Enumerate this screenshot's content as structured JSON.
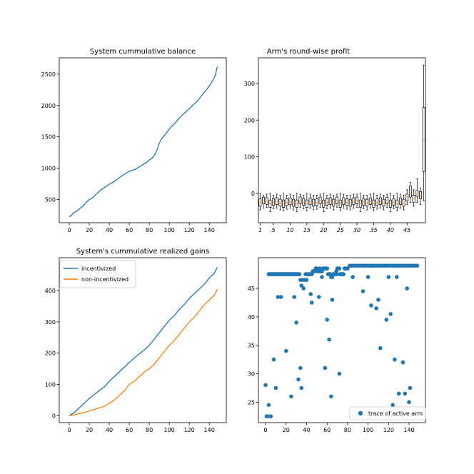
{
  "chart_data": [
    {
      "type": "line",
      "title": "System cummulative balance",
      "xlim": [
        -10,
        157
      ],
      "ylim": [
        130,
        2760
      ],
      "xticks": [
        0,
        20,
        40,
        60,
        80,
        100,
        120,
        140
      ],
      "yticks": [
        500,
        1000,
        1500,
        2000,
        2500
      ],
      "series": [
        {
          "color": "#1f77b4",
          "x": [
            0,
            2,
            4,
            6,
            8,
            10,
            12,
            14,
            16,
            18,
            20,
            22,
            24,
            26,
            28,
            30,
            32,
            34,
            36,
            38,
            40,
            42,
            44,
            46,
            48,
            50,
            52,
            54,
            56,
            58,
            60,
            62,
            64,
            66,
            68,
            70,
            72,
            74,
            76,
            78,
            80,
            82,
            84,
            86,
            88,
            90,
            92,
            94,
            96,
            98,
            100,
            102,
            104,
            106,
            108,
            110,
            112,
            114,
            116,
            118,
            120,
            122,
            124,
            126,
            128,
            130,
            132,
            134,
            136,
            138,
            140,
            142,
            144,
            146,
            148
          ],
          "y": [
            230,
            240,
            285,
            300,
            320,
            350,
            375,
            400,
            440,
            470,
            500,
            515,
            535,
            570,
            600,
            630,
            660,
            680,
            700,
            720,
            745,
            760,
            780,
            800,
            820,
            850,
            870,
            890,
            910,
            930,
            950,
            960,
            970,
            980,
            1000,
            1020,
            1040,
            1060,
            1080,
            1100,
            1130,
            1150,
            1180,
            1230,
            1300,
            1400,
            1460,
            1500,
            1540,
            1580,
            1620,
            1660,
            1690,
            1720,
            1760,
            1800,
            1830,
            1860,
            1890,
            1920,
            1950,
            1980,
            2010,
            2040,
            2070,
            2110,
            2150,
            2190,
            2230,
            2270,
            2310,
            2360,
            2420,
            2480,
            2620
          ]
        }
      ]
    },
    {
      "type": "box",
      "title": "Arm's round-wise profit",
      "xlim": [
        0.5,
        50.5
      ],
      "ylim": [
        -80,
        370
      ],
      "yticks": [
        0,
        100,
        200,
        300
      ],
      "xtick_positions": [
        1,
        5,
        10,
        15,
        20,
        25,
        30,
        35,
        40,
        45
      ],
      "xtick_labels": [
        "1",
        "5",
        "10",
        "15",
        "20",
        "25",
        "30",
        "35",
        "40",
        "45"
      ],
      "boxes": {
        "whisker_low": [
          -45,
          -40,
          -38,
          -50,
          -42,
          -40,
          -45,
          -48,
          -43,
          -40,
          -45,
          -50,
          -38,
          -42,
          -48,
          -40,
          -45,
          -43,
          -38,
          -50,
          -42,
          -40,
          -45,
          -38,
          -48,
          -40,
          -43,
          -45,
          -40,
          -38,
          -50,
          -42,
          -45,
          -40,
          -48,
          -43,
          -40,
          -45,
          -38,
          -50,
          -42,
          -48,
          -40,
          -45,
          -30,
          -25,
          -35,
          -25,
          -30,
          -20
        ],
        "q1": [
          -35,
          -28,
          -30,
          -38,
          -32,
          -30,
          -35,
          -38,
          -33,
          -30,
          -35,
          -38,
          -28,
          -32,
          -38,
          -30,
          -35,
          -33,
          -28,
          -38,
          -32,
          -30,
          -35,
          -28,
          -38,
          -30,
          -33,
          -35,
          -30,
          -28,
          -38,
          -32,
          -35,
          -30,
          -38,
          -33,
          -30,
          -35,
          -28,
          -38,
          -32,
          -38,
          -30,
          -35,
          -20,
          -10,
          -25,
          -8,
          -15,
          60
        ],
        "median": [
          -25,
          -20,
          -22,
          -28,
          -24,
          -22,
          -26,
          -28,
          -25,
          -22,
          -26,
          -28,
          -20,
          -24,
          -28,
          -22,
          -26,
          -25,
          -20,
          -28,
          -24,
          -22,
          -26,
          -20,
          -28,
          -22,
          -25,
          -26,
          -22,
          -20,
          -28,
          -24,
          -26,
          -22,
          -28,
          -25,
          -22,
          -26,
          -20,
          -28,
          -24,
          -28,
          -22,
          -26,
          -10,
          0,
          -15,
          -2,
          -5,
          145
        ],
        "q3": [
          -15,
          -10,
          -12,
          -18,
          -14,
          -12,
          -16,
          -18,
          -15,
          -12,
          -16,
          -18,
          -10,
          -14,
          -18,
          -12,
          -16,
          -15,
          -10,
          -18,
          -14,
          -12,
          -16,
          -10,
          -18,
          -12,
          -15,
          -16,
          -12,
          -10,
          -18,
          -14,
          -16,
          -12,
          -18,
          -15,
          -12,
          -16,
          -10,
          -18,
          -14,
          -18,
          -12,
          -16,
          -2,
          20,
          -5,
          8,
          5,
          235
        ],
        "whisker_high": [
          0,
          -5,
          -2,
          0,
          -5,
          -2,
          -5,
          0,
          -5,
          -2,
          -5,
          0,
          -2,
          -5,
          0,
          -2,
          -5,
          -5,
          -2,
          0,
          -5,
          -2,
          -5,
          -2,
          0,
          -2,
          -5,
          -5,
          -2,
          -2,
          0,
          -5,
          -5,
          -2,
          0,
          -5,
          -2,
          -5,
          -2,
          0,
          -5,
          0,
          -2,
          -5,
          10,
          30,
          10,
          40,
          15,
          350
        ]
      }
    },
    {
      "type": "line",
      "title": "System's cummulative realized gains",
      "xlim": [
        -10,
        157
      ],
      "ylim": [
        -22,
        505
      ],
      "xticks": [
        0,
        20,
        40,
        60,
        80,
        100,
        120,
        140
      ],
      "yticks": [
        0,
        100,
        200,
        300,
        400
      ],
      "legend_position": "upper-left",
      "series": [
        {
          "name": "incentivized",
          "color": "#1f77b4",
          "x": [
            0,
            5,
            10,
            15,
            20,
            25,
            30,
            35,
            40,
            45,
            50,
            55,
            60,
            65,
            70,
            75,
            80,
            85,
            90,
            95,
            100,
            105,
            110,
            115,
            120,
            125,
            130,
            135,
            140,
            145,
            148
          ],
          "y": [
            0,
            10,
            25,
            40,
            55,
            68,
            80,
            92,
            110,
            125,
            140,
            155,
            170,
            185,
            198,
            210,
            225,
            245,
            265,
            285,
            305,
            320,
            340,
            355,
            375,
            390,
            405,
            420,
            440,
            455,
            475
          ]
        },
        {
          "name": "non-incentivized",
          "color": "#ff7f0e",
          "x": [
            0,
            5,
            10,
            15,
            20,
            25,
            30,
            35,
            40,
            45,
            50,
            55,
            60,
            65,
            70,
            75,
            80,
            85,
            90,
            95,
            100,
            105,
            110,
            115,
            120,
            125,
            130,
            135,
            140,
            145,
            148
          ],
          "y": [
            0,
            3,
            7,
            10,
            15,
            20,
            25,
            30,
            40,
            50,
            65,
            80,
            100,
            110,
            125,
            140,
            150,
            165,
            185,
            205,
            225,
            240,
            260,
            280,
            300,
            315,
            335,
            355,
            370,
            385,
            405
          ]
        }
      ]
    },
    {
      "type": "scatter",
      "xlim": [
        -7,
        156
      ],
      "ylim": [
        21.4,
        50.4
      ],
      "xticks": [
        0,
        20,
        40,
        60,
        80,
        100,
        120,
        140
      ],
      "yticks": [
        25,
        30,
        35,
        40,
        45
      ],
      "legend_position": "lower-right",
      "series": [
        {
          "name": "trace of active arm",
          "color": "#1f77b4",
          "x": [
            0,
            1,
            2,
            3,
            4,
            5,
            6,
            7,
            8,
            9,
            10,
            11,
            12,
            13,
            14,
            15,
            16,
            17,
            18,
            19,
            20,
            21,
            22,
            23,
            24,
            25,
            26,
            27,
            28,
            29,
            30,
            31,
            32,
            33,
            34,
            35,
            36,
            37,
            38,
            39,
            40,
            41,
            42,
            43,
            44,
            45,
            46,
            47,
            48,
            49,
            50,
            51,
            52,
            53,
            54,
            55,
            56,
            57,
            58,
            59,
            60,
            61,
            62,
            63,
            64,
            65,
            66,
            67,
            68,
            69,
            70,
            71,
            72,
            73,
            74,
            75,
            76,
            77,
            78,
            79,
            80,
            82,
            84,
            86,
            88,
            90,
            92,
            94,
            96,
            98,
            100,
            102,
            104,
            106,
            108,
            110,
            112,
            114,
            116,
            118,
            120,
            122,
            124,
            126,
            128,
            130,
            132,
            134,
            136,
            138,
            140,
            142,
            144,
            146,
            148,
            8,
            12,
            20,
            28,
            32,
            34,
            44,
            52,
            58,
            60,
            62,
            64,
            72,
            95,
            103,
            108,
            112,
            118,
            122,
            126,
            130,
            134,
            138,
            140,
            3,
            5,
            10,
            15,
            25,
            30,
            35,
            40,
            45,
            55,
            65,
            70,
            85,
            100,
            110,
            120,
            124,
            128,
            136,
            141
          ],
          "y": [
            28,
            22.5,
            22.5,
            47.5,
            47.5,
            47.5,
            47.5,
            47.5,
            47.5,
            47.5,
            47.5,
            47.5,
            47.5,
            47.5,
            47.5,
            47.5,
            47.5,
            47.5,
            47.5,
            47.5,
            47.5,
            47.5,
            47.5,
            47.5,
            47.5,
            47.5,
            47.5,
            47.5,
            47.5,
            47.5,
            47.5,
            47.5,
            47.5,
            47.5,
            46.5,
            45.5,
            46.5,
            45,
            46.5,
            47.5,
            47.5,
            47.5,
            47.5,
            47.5,
            47.5,
            47.5,
            48,
            48,
            48,
            48.5,
            48.5,
            48,
            48,
            48.5,
            48,
            48,
            48.5,
            48.5,
            48.5,
            48.5,
            48.5,
            47.5,
            47.5,
            47.5,
            47,
            47,
            47.5,
            47.5,
            47.5,
            48,
            48.5,
            48.5,
            48.5,
            47.5,
            47.5,
            47.5,
            47.5,
            48.5,
            48.5,
            48.5,
            48.5,
            49,
            49,
            49,
            49,
            49,
            49,
            49,
            49,
            49,
            49,
            49,
            49,
            49,
            49,
            49,
            49,
            49,
            49,
            49,
            49,
            49,
            49,
            49,
            49,
            49,
            49,
            49,
            49,
            49,
            49,
            49,
            49,
            49,
            49,
            32.5,
            43.5,
            34,
            43.5,
            29,
            31,
            44,
            43.5,
            31,
            39.5,
            36,
            26,
            30,
            44.5,
            42,
            41.5,
            34.5,
            39.5,
            40.5,
            32.5,
            26.5,
            32,
            45,
            25,
            24.5,
            22.5,
            27.5,
            43.5,
            26,
            39,
            27.5,
            46.5,
            42.5,
            47,
            43,
            47.5,
            47,
            47,
            43,
            47,
            24.5,
            47,
            26.5,
            27.5
          ]
        }
      ]
    }
  ]
}
